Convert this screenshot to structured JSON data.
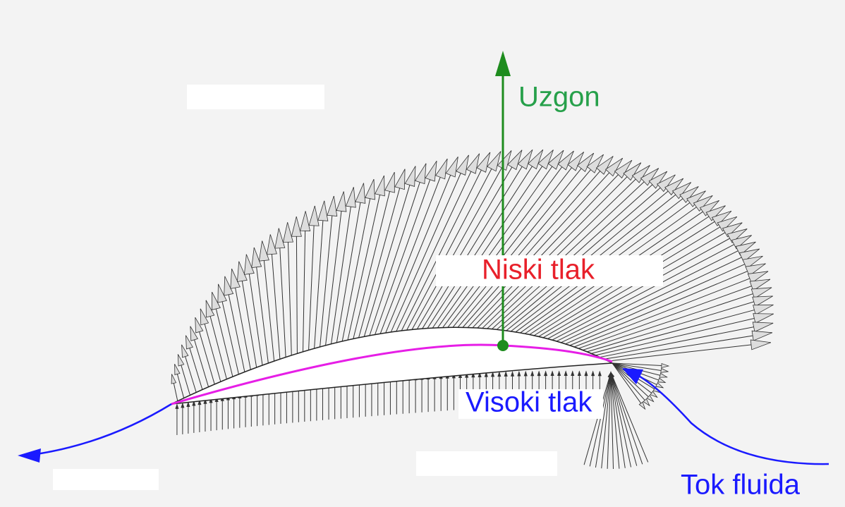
{
  "labels": {
    "lift": "Uzgon",
    "low_pressure": "Niski tlak",
    "high_pressure": "Visoki tlak",
    "flow": "Tok fluida"
  }
}
